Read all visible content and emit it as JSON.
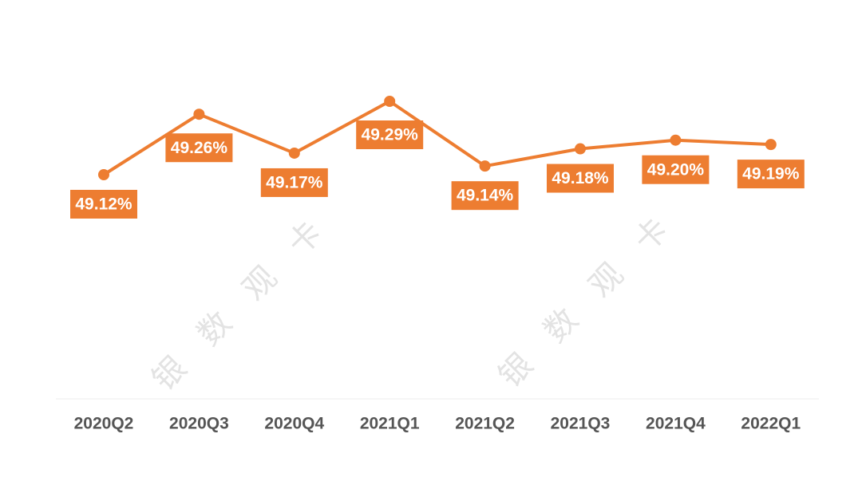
{
  "watermark": {
    "text": "银 数 观 卡"
  },
  "chart_data": {
    "type": "line",
    "categories": [
      "2020Q2",
      "2020Q3",
      "2020Q4",
      "2021Q1",
      "2021Q2",
      "2021Q3",
      "2021Q4",
      "2022Q1"
    ],
    "series": [
      {
        "values": [
          49.12,
          49.26,
          49.17,
          49.29,
          49.14,
          49.18,
          49.2,
          49.19
        ],
        "labels": [
          "49.12%",
          "49.26%",
          "49.17%",
          "49.29%",
          "49.14%",
          "49.18%",
          "49.20%",
          "49.19%"
        ]
      }
    ],
    "color": "#ED7D31",
    "unit": "%",
    "grid": false,
    "legend": "none"
  }
}
